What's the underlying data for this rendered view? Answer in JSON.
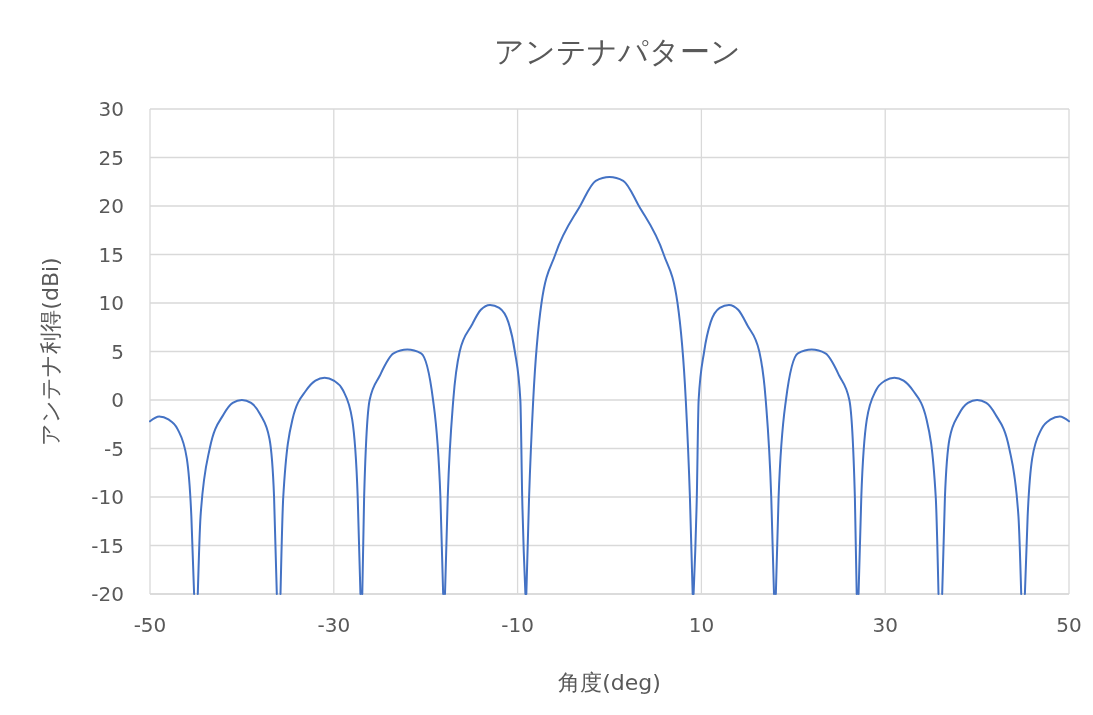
{
  "chart_data": {
    "type": "line",
    "title": "アンテナパターン",
    "xlabel": "角度(deg)",
    "ylabel": "アンテナ利得(dBi)",
    "x": [
      -50,
      -49,
      -48,
      -47,
      -46,
      -45.5,
      -45.2,
      -45,
      -44.8,
      -44.5,
      -43.5,
      -42,
      -41,
      -40,
      -39,
      -38,
      -37,
      -36.5,
      -36.2,
      -36,
      -35.8,
      -35.5,
      -34.5,
      -33,
      -32,
      -31,
      -30,
      -29,
      -28,
      -27.4,
      -27.1,
      -27,
      -26.9,
      -26.7,
      -26.1,
      -25,
      -23.5,
      -22,
      -20.5,
      -19.2,
      -18.4,
      -18.1,
      -18,
      -17.9,
      -17.6,
      -17,
      -16.3,
      -15,
      -14,
      -13,
      -12,
      -11,
      -10.3,
      -9.7,
      -9.5,
      -9.15,
      -9.1,
      -9.05,
      -8.75,
      -8.3,
      -7.4,
      -5.9,
      -3.2,
      -1.5,
      0,
      1.5,
      3.2,
      5.9,
      7.4,
      8.3,
      8.75,
      9.05,
      9.1,
      9.15,
      9.5,
      9.7,
      10.3,
      11,
      12,
      13,
      14,
      15,
      16.3,
      17,
      17.6,
      17.9,
      18,
      18.1,
      18.4,
      19.2,
      20.5,
      22,
      23.5,
      25,
      26.1,
      26.7,
      26.9,
      27,
      27.1,
      27.4,
      28,
      29,
      30,
      31,
      32,
      33,
      34.5,
      35.5,
      35.8,
      36,
      36.2,
      36.5,
      37,
      38,
      39,
      40,
      41,
      42,
      43.5,
      44.5,
      44.8,
      45,
      45.2,
      45.5,
      46,
      47,
      48,
      49,
      50
    ],
    "series": [
      {
        "color": "#4472c4",
        "values": [
          -2.2,
          -1.7,
          -2,
          -3,
          -6,
          -12,
          -20,
          null,
          -20,
          -12,
          -5,
          -1.5,
          -0.3,
          0,
          -0.3,
          -1.5,
          -4,
          -10,
          -20,
          null,
          -20,
          -10,
          -2,
          1,
          2,
          2.3,
          2,
          1,
          -2,
          -10,
          -20,
          null,
          -20,
          -10,
          0,
          2.5,
          4.8,
          5.2,
          4.8,
          0,
          -10,
          -20,
          null,
          -20,
          -10,
          0,
          5,
          7.7,
          9.3,
          9.8,
          9.5,
          8,
          5,
          0,
          -10,
          -20,
          null,
          -20,
          -10,
          0,
          10,
          15,
          20,
          22.6,
          23,
          22.6,
          20,
          15,
          10,
          0,
          -10,
          -20,
          null,
          -20,
          -10,
          0,
          5,
          8,
          9.5,
          9.8,
          9.3,
          7.7,
          5,
          0,
          -10,
          -20,
          null,
          -20,
          -10,
          0,
          4.8,
          5.2,
          4.8,
          2.5,
          0,
          -10,
          -20,
          null,
          -20,
          -10,
          -2,
          1,
          2,
          2.3,
          2,
          1,
          -2,
          -10,
          -20,
          null,
          -20,
          -10,
          -4,
          -1.5,
          -0.3,
          0,
          -0.3,
          -1.5,
          -5,
          -12,
          -20,
          null,
          -20,
          -12,
          -6,
          -3,
          -2,
          -1.7,
          -2.2
        ]
      }
    ],
    "xlim": [
      -50,
      50
    ],
    "xticks": [
      -50,
      -30,
      -10,
      10,
      30,
      50
    ],
    "ylim": [
      -20,
      30
    ],
    "yticks": [
      -20,
      -15,
      -10,
      -5,
      0,
      5,
      10,
      15,
      20,
      25,
      30
    ],
    "grid": true
  }
}
